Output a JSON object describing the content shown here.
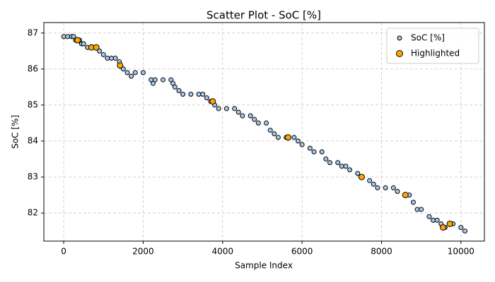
{
  "chart_data": {
    "type": "scatter",
    "title": "Scatter Plot - SoC [%]",
    "x_label": "Sample Index",
    "y_label": "SoC [%]",
    "xlim": [
      -500,
      10590
    ],
    "ylim": [
      81.22,
      87.29
    ],
    "xticks": [
      0,
      2000,
      4000,
      6000,
      8000,
      10000
    ],
    "yticks": [
      82,
      83,
      84,
      85,
      86,
      87
    ],
    "grid": true,
    "legend": "upper right",
    "series": [
      {
        "name": "SoC [%]",
        "color": "#a8c8ec",
        "x": [
          0,
          100,
          200,
          250,
          300,
          400,
          450,
          500,
          600,
          700,
          800,
          900,
          1000,
          1100,
          1200,
          1300,
          1400,
          1500,
          1600,
          1700,
          1800,
          2000,
          2200,
          2250,
          2300,
          2500,
          2700,
          2750,
          2800,
          2900,
          3000,
          3200,
          3400,
          3500,
          3600,
          3700,
          3800,
          3900,
          4100,
          4300,
          4400,
          4500,
          4700,
          4800,
          4900,
          5100,
          5200,
          5300,
          5400,
          5600,
          5800,
          5900,
          6000,
          6200,
          6300,
          6500,
          6600,
          6700,
          6900,
          7000,
          7100,
          7200,
          7400,
          7500,
          7700,
          7800,
          7900,
          8100,
          8300,
          8400,
          8600,
          8700,
          8800,
          8900,
          9000,
          9200,
          9300,
          9400,
          9500,
          9600,
          9800,
          10000,
          10100
        ],
        "values": [
          86.9,
          86.9,
          86.9,
          86.9,
          86.8,
          86.8,
          86.7,
          86.7,
          86.6,
          86.6,
          86.6,
          86.5,
          86.4,
          86.3,
          86.3,
          86.3,
          86.2,
          86.0,
          85.9,
          85.8,
          85.9,
          85.9,
          85.7,
          85.6,
          85.7,
          85.7,
          85.7,
          85.6,
          85.5,
          85.4,
          85.3,
          85.3,
          85.3,
          85.3,
          85.2,
          85.1,
          85.0,
          84.9,
          84.9,
          84.9,
          84.8,
          84.7,
          84.7,
          84.6,
          84.5,
          84.5,
          84.3,
          84.2,
          84.1,
          84.1,
          84.1,
          84.0,
          83.9,
          83.8,
          83.7,
          83.7,
          83.5,
          83.4,
          83.4,
          83.3,
          83.3,
          83.2,
          83.1,
          83.0,
          82.9,
          82.8,
          82.7,
          82.7,
          82.7,
          82.6,
          82.5,
          82.5,
          82.3,
          82.1,
          82.1,
          81.9,
          81.8,
          81.8,
          81.7,
          81.6,
          81.7,
          81.6,
          81.5
        ]
      },
      {
        "name": "Highlighted",
        "color": "#ffa500",
        "x": [
          350,
          700,
          820,
          1420,
          3750,
          5650,
          7500,
          8600,
          9550,
          9720
        ],
        "values": [
          86.8,
          86.6,
          86.6,
          86.1,
          85.1,
          84.1,
          83.0,
          82.5,
          81.6,
          81.7
        ]
      }
    ]
  }
}
